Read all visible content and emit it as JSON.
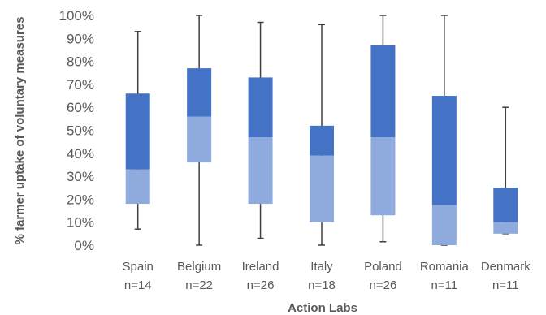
{
  "chart_data": {
    "type": "box",
    "title": "",
    "xlabel": "Action Labs",
    "ylabel": "% farmer uptake of voluntary measures",
    "ylim": [
      0,
      100
    ],
    "yticks": [
      "0%",
      "10%",
      "20%",
      "30%",
      "40%",
      "50%",
      "60%",
      "70%",
      "80%",
      "90%",
      "100%"
    ],
    "grid": false,
    "legend": "none",
    "colors": {
      "upper_box": "#4472C4",
      "lower_box": "#8FAADC",
      "whisker": "#404040",
      "text": "#595959"
    },
    "categories": [
      {
        "name": "Spain",
        "n": "n=14",
        "min": 7,
        "q1": 18,
        "median": 33,
        "q3": 66,
        "max": 93
      },
      {
        "name": "Belgium",
        "n": "n=22",
        "min": 0,
        "q1": 36,
        "median": 56,
        "q3": 77,
        "max": 100
      },
      {
        "name": "Ireland",
        "n": "n=26",
        "min": 3,
        "q1": 18,
        "median": 47,
        "q3": 73,
        "max": 97
      },
      {
        "name": "Italy",
        "n": "n=18",
        "min": 0,
        "q1": 10,
        "median": 39,
        "q3": 52,
        "max": 96
      },
      {
        "name": "Poland",
        "n": "n=26",
        "min": 1.5,
        "q1": 13,
        "median": 47,
        "q3": 87,
        "max": 100
      },
      {
        "name": "Romania",
        "n": "n=11",
        "min": 0,
        "q1": 0,
        "median": 17.5,
        "q3": 65,
        "max": 100
      },
      {
        "name": "Denmark",
        "n": "n=11",
        "min": 5,
        "q1": 5,
        "median": 10,
        "q3": 25,
        "max": 60
      }
    ]
  }
}
